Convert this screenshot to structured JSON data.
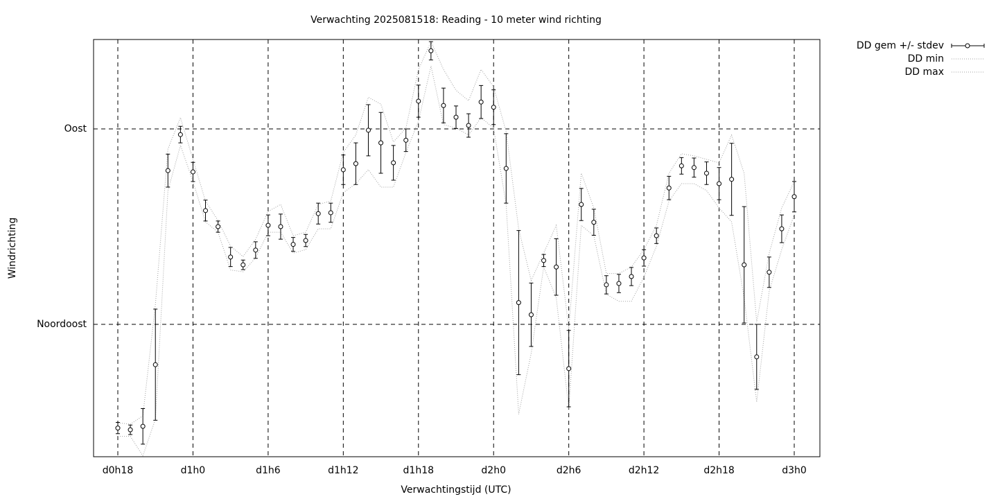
{
  "chart_data": {
    "type": "errorbar_line",
    "title": "Verwachting 2025081518: Reading - 10 meter wind richting",
    "x_label": "Verwachtingstijd (UTC)",
    "y_label": "Windrichting",
    "categories": [
      "d0h18",
      null,
      null,
      null,
      null,
      null,
      "d1h0",
      null,
      null,
      null,
      null,
      null,
      "d1h6",
      null,
      null,
      null,
      null,
      null,
      "d1h12",
      null,
      null,
      null,
      null,
      null,
      "d1h18",
      null,
      null,
      null,
      null,
      null,
      "d2h0",
      null,
      null,
      null,
      null,
      null,
      "d2h6",
      null,
      null,
      null,
      null,
      null,
      "d2h12",
      null,
      null,
      null,
      null,
      null,
      "d2h18",
      null,
      null,
      null,
      null,
      null,
      "d3h0"
    ],
    "ylim": [
      14.5,
      110.6
    ],
    "yticks": [
      {
        "value": 45,
        "label": "Noordoost"
      },
      {
        "value": 90,
        "label": "Oost"
      }
    ],
    "grid": true,
    "legend": "outside-top-right",
    "series": [
      {
        "name": "DD gem +/- stdev",
        "color": "#000000",
        "values": [
          21.1,
          20.7,
          21.5,
          35.7,
          80.4,
          88.7,
          80.1,
          71.2,
          67.5,
          60.5,
          58.7,
          62.1,
          67.8,
          67.5,
          63.4,
          64.3,
          70.5,
          70.7,
          80.6,
          82.0,
          89.7,
          86.8,
          82.2,
          87.4,
          96.4,
          108.0,
          95.4,
          92.7,
          90.8,
          96.2,
          95.0,
          80.9,
          50.0,
          47.2,
          59.7,
          58.2,
          34.8,
          72.6,
          68.5,
          54.1,
          54.4,
          56.0,
          60.3,
          65.4,
          76.4,
          81.5,
          81.1,
          79.8,
          77.4,
          78.4,
          58.7,
          37.5,
          57.0,
          67.0,
          74.4
        ],
        "errors": [
          1.3,
          1.1,
          4.1,
          12.8,
          3.8,
          1.9,
          2.2,
          2.4,
          1.3,
          2.2,
          1.1,
          1.9,
          2.4,
          2.9,
          1.6,
          1.4,
          2.4,
          2.2,
          3.4,
          4.8,
          5.9,
          7.0,
          4.0,
          2.6,
          3.7,
          2.1,
          4.0,
          2.6,
          2.7,
          3.8,
          4.0,
          8.0,
          16.6,
          7.3,
          1.4,
          6.5,
          8.8,
          3.7,
          3.0,
          2.1,
          2.1,
          2.1,
          1.9,
          1.8,
          2.7,
          1.9,
          2.2,
          2.6,
          3.7,
          8.3,
          13.4,
          7.5,
          3.5,
          3.2,
          3.5
        ]
      },
      {
        "name": "DD min",
        "color": "#a0a0a0",
        "values": [
          19.2,
          19.2,
          14.7,
          23.1,
          75.8,
          86.2,
          77.9,
          68.6,
          66.2,
          57.5,
          57.1,
          60.3,
          66.2,
          66.2,
          61.4,
          62.2,
          67.0,
          67.0,
          75.3,
          77.4,
          80.6,
          76.6,
          76.6,
          84.6,
          91.8,
          104.5,
          91.0,
          90.2,
          88.6,
          92.6,
          90.2,
          72.6,
          24.3,
          38.3,
          58.2,
          51.1,
          25.5,
          67.8,
          65.4,
          51.9,
          50.3,
          50.3,
          55.9,
          63.0,
          73.4,
          77.4,
          77.4,
          75.8,
          71.8,
          68.6,
          51.1,
          27.1,
          52.7,
          62.2,
          70.2
        ]
      },
      {
        "name": "DD max",
        "color": "#a0a0a0",
        "values": [
          22.3,
          22.0,
          23.9,
          49.5,
          85.4,
          92.6,
          83.0,
          73.4,
          68.9,
          63.0,
          60.6,
          64.6,
          71.0,
          72.6,
          65.4,
          66.2,
          72.6,
          73.4,
          84.6,
          88.6,
          97.3,
          95.7,
          87.0,
          90.2,
          103.7,
          110.1,
          103.7,
          98.9,
          96.5,
          103.7,
          99.7,
          89.4,
          67.0,
          55.1,
          61.4,
          67.8,
          43.9,
          79.8,
          71.8,
          56.7,
          56.7,
          58.2,
          62.2,
          67.8,
          79.8,
          84.3,
          83.8,
          83.0,
          82.2,
          88.6,
          79.8,
          45.5,
          61.4,
          71.8,
          77.9
        ]
      }
    ]
  }
}
